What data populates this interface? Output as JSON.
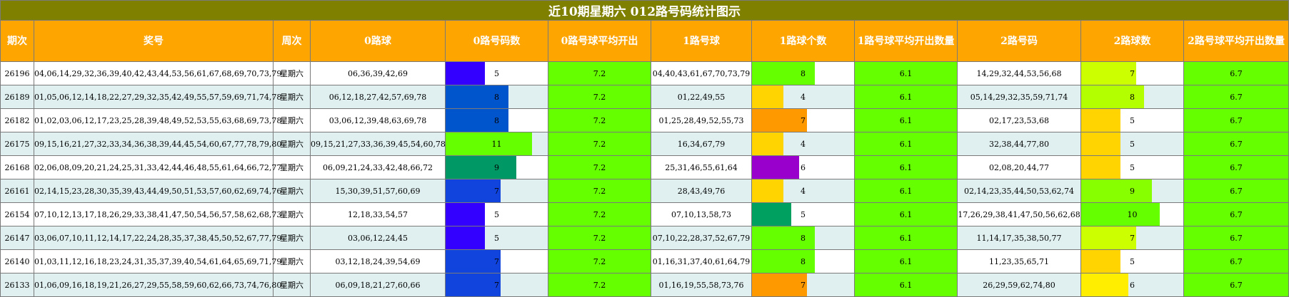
{
  "title": "近10期星期六 012路号码统计图示",
  "headers": [
    "期次",
    "奖号",
    "周次",
    "0路球",
    "0路号码数",
    "0路号球平均开出",
    "1路号球",
    "1路球个数",
    "1路号球平均开出数量",
    "2路号码",
    "2路球数",
    "2路号球平均开出数量"
  ],
  "chart_data": {
    "type": "table",
    "bar_max": 13,
    "rows": [
      {
        "period": "26196",
        "numbers": "04,06,14,29,32,36,39,40,42,43,44,53,56,61,67,68,69,70,73,79",
        "weekday": "星期六",
        "r0_balls": "06,36,39,42,69",
        "r0_count": 5,
        "r0_color": "#3300ff",
        "r0_avg": "7.2",
        "r1_balls": "04,40,43,61,67,70,73,79",
        "r1_count": 8,
        "r1_color": "#66ff00",
        "r1_avg": "6.1",
        "r2_balls": "14,29,32,44,53,56,68",
        "r2_count": 7,
        "r2_color": "#ccff00",
        "r2_avg": "6.7"
      },
      {
        "period": "26189",
        "numbers": "01,05,06,12,14,18,22,27,29,32,35,42,49,55,57,59,69,71,74,78",
        "weekday": "星期六",
        "r0_balls": "06,12,18,27,42,57,69,78",
        "r0_count": 8,
        "r0_color": "#0055cc",
        "r0_avg": "7.2",
        "r1_balls": "01,22,49,55",
        "r1_count": 4,
        "r1_color": "#ffd400",
        "r1_avg": "6.1",
        "r2_balls": "05,14,29,32,35,59,71,74",
        "r2_count": 8,
        "r2_color": "#b3ff00",
        "r2_avg": "6.7"
      },
      {
        "period": "26182",
        "numbers": "01,02,03,06,12,17,23,25,28,39,48,49,52,53,55,63,68,69,73,78",
        "weekday": "星期六",
        "r0_balls": "03,06,12,39,48,63,69,78",
        "r0_count": 8,
        "r0_color": "#0055cc",
        "r0_avg": "7.2",
        "r1_balls": "01,25,28,49,52,55,73",
        "r1_count": 7,
        "r1_color": "#ff9900",
        "r1_avg": "6.1",
        "r2_balls": "02,17,23,53,68",
        "r2_count": 5,
        "r2_color": "#ffd400",
        "r2_avg": "6.7"
      },
      {
        "period": "26175",
        "numbers": "09,15,16,21,27,32,33,34,36,38,39,44,45,54,60,67,77,78,79,80",
        "weekday": "星期六",
        "r0_balls": "09,15,21,27,33,36,39,45,54,60,78",
        "r0_count": 11,
        "r0_color": "#66ff00",
        "r0_avg": "7.2",
        "r1_balls": "16,34,67,79",
        "r1_count": 4,
        "r1_color": "#ffd400",
        "r1_avg": "6.1",
        "r2_balls": "32,38,44,77,80",
        "r2_count": 5,
        "r2_color": "#ffd400",
        "r2_avg": "6.7"
      },
      {
        "period": "26168",
        "numbers": "02,06,08,09,20,21,24,25,31,33,42,44,46,48,55,61,64,66,72,77",
        "weekday": "星期六",
        "r0_balls": "06,09,21,24,33,42,48,66,72",
        "r0_count": 9,
        "r0_color": "#009966",
        "r0_avg": "7.2",
        "r1_balls": "25,31,46,55,61,64",
        "r1_count": 6,
        "r1_color": "#9900cc",
        "r1_avg": "6.1",
        "r2_balls": "02,08,20,44,77",
        "r2_count": 5,
        "r2_color": "#ffd400",
        "r2_avg": "6.7"
      },
      {
        "period": "26161",
        "numbers": "02,14,15,23,28,30,35,39,43,44,49,50,51,53,57,60,62,69,74,76",
        "weekday": "星期六",
        "r0_balls": "15,30,39,51,57,60,69",
        "r0_count": 7,
        "r0_color": "#1144dd",
        "r0_avg": "7.2",
        "r1_balls": "28,43,49,76",
        "r1_count": 4,
        "r1_color": "#ffd400",
        "r1_avg": "6.1",
        "r2_balls": "02,14,23,35,44,50,53,62,74",
        "r2_count": 9,
        "r2_color": "#88ff00",
        "r2_avg": "6.7"
      },
      {
        "period": "26154",
        "numbers": "07,10,12,13,17,18,26,29,33,38,41,47,50,54,56,57,58,62,68,73",
        "weekday": "星期六",
        "r0_balls": "12,18,33,54,57",
        "r0_count": 5,
        "r0_color": "#3300ff",
        "r0_avg": "7.2",
        "r1_balls": "07,10,13,58,73",
        "r1_count": 5,
        "r1_color": "#00a060",
        "r1_avg": "6.1",
        "r2_balls": "17,26,29,38,41,47,50,56,62,68",
        "r2_count": 10,
        "r2_color": "#66ff00",
        "r2_avg": "6.7"
      },
      {
        "period": "26147",
        "numbers": "03,06,07,10,11,12,14,17,22,24,28,35,37,38,45,50,52,67,77,79",
        "weekday": "星期六",
        "r0_balls": "03,06,12,24,45",
        "r0_count": 5,
        "r0_color": "#3300ff",
        "r0_avg": "7.2",
        "r1_balls": "07,10,22,28,37,52,67,79",
        "r1_count": 8,
        "r1_color": "#66ff00",
        "r1_avg": "6.1",
        "r2_balls": "11,14,17,35,38,50,77",
        "r2_count": 7,
        "r2_color": "#ccff00",
        "r2_avg": "6.7"
      },
      {
        "period": "26140",
        "numbers": "01,03,11,12,16,18,23,24,31,35,37,39,40,54,61,64,65,69,71,79",
        "weekday": "星期六",
        "r0_balls": "03,12,18,24,39,54,69",
        "r0_count": 7,
        "r0_color": "#1144dd",
        "r0_avg": "7.2",
        "r1_balls": "01,16,31,37,40,61,64,79",
        "r1_count": 8,
        "r1_color": "#66ff00",
        "r1_avg": "6.1",
        "r2_balls": "11,23,35,65,71",
        "r2_count": 5,
        "r2_color": "#ffd400",
        "r2_avg": "6.7"
      },
      {
        "period": "26133",
        "numbers": "01,06,09,16,18,19,21,26,27,29,55,58,59,60,62,66,73,74,76,80",
        "weekday": "星期六",
        "r0_balls": "06,09,18,21,27,60,66",
        "r0_count": 7,
        "r0_color": "#1144dd",
        "r0_avg": "7.2",
        "r1_balls": "01,16,19,55,58,73,76",
        "r1_count": 7,
        "r1_color": "#ff9900",
        "r1_avg": "6.1",
        "r2_balls": "26,29,59,62,74,80",
        "r2_count": 6,
        "r2_color": "#ffee00",
        "r2_avg": "6.7"
      }
    ]
  }
}
